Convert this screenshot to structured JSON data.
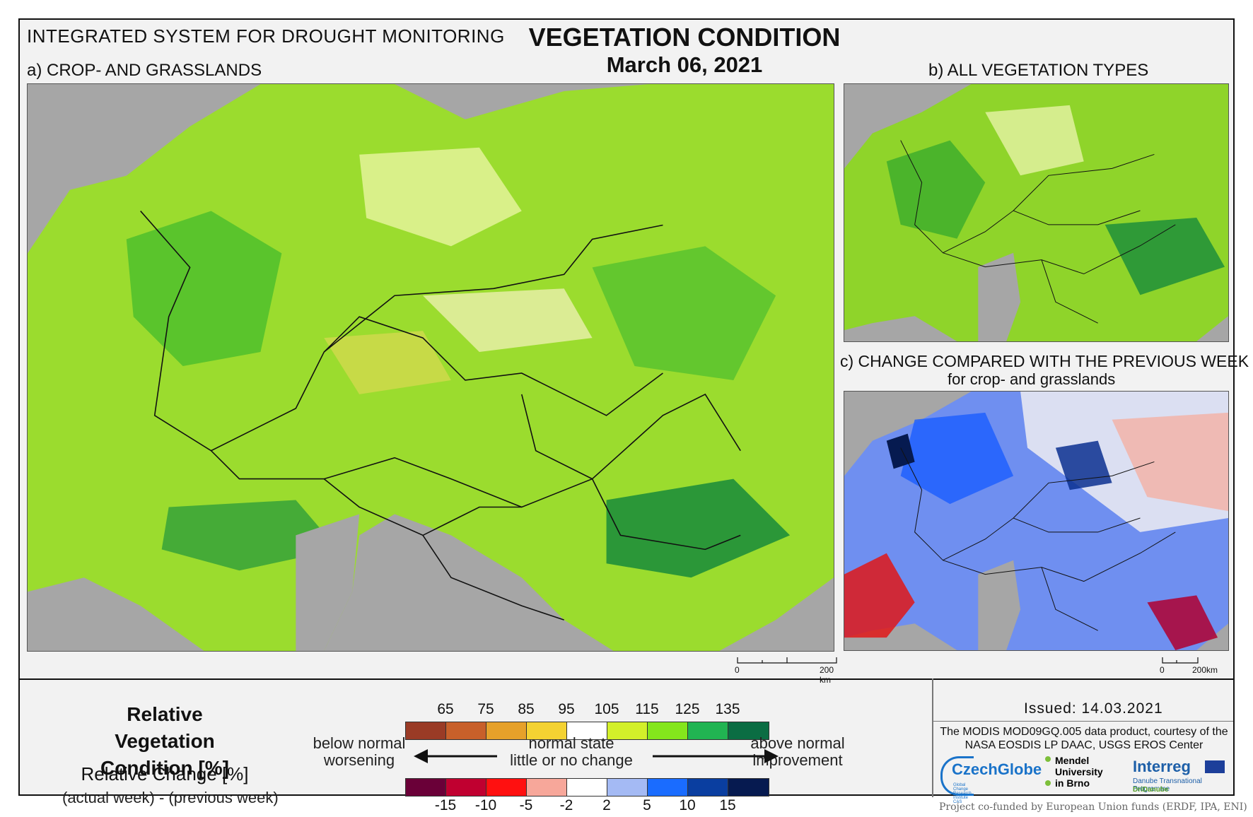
{
  "header": {
    "system": "INTEGRATED SYSTEM FOR DROUGHT MONITORING",
    "title": "VEGETATION CONDITION",
    "date": "March 06, 2021"
  },
  "panels": {
    "a": "a) CROP- AND GRASSLANDS",
    "b": "b) ALL VEGETATION TYPES",
    "c": "c) CHANGE COMPARED WITH THE PREVIOUS WEEK",
    "c_sub": "for crop- and grasslands"
  },
  "scale": {
    "a_zero": "0",
    "a_km": "200 km",
    "c_zero": "0",
    "c_km": "200km"
  },
  "legend": {
    "rvc_title": "Relative Vegetation Condition [%]",
    "rc_title": "Relative Change [%]",
    "rc_sub": "(actual week) - (previous week)",
    "top_ticks": [
      "65",
      "75",
      "85",
      "95",
      "105",
      "115",
      "125",
      "135"
    ],
    "bottom_ticks": [
      "-15",
      "-10",
      "-5",
      "-2",
      "2",
      "5",
      "10",
      "15"
    ],
    "top_colors": [
      "#9a3b26",
      "#c8602a",
      "#e6a12a",
      "#f4d232",
      "#ffffff",
      "#d3f02a",
      "#84e61c",
      "#21b452",
      "#0b6d43"
    ],
    "bottom_colors": [
      "#6a0038",
      "#c00030",
      "#ff1010",
      "#f7a79a",
      "#ffffff",
      "#a4baf4",
      "#1a6cff",
      "#0a3ea0",
      "#061a50"
    ],
    "below_normal": "below normal",
    "worsening": "worsening",
    "normal_state": "normal state",
    "little_change": "little or no change",
    "above_normal": "above normal",
    "improvement": "improvement"
  },
  "footer": {
    "issued": "Issued: 14.03.2021",
    "courtesy": "The MODIS MOD09GQ.005 data product, courtesy of the NASA EOSDIS LP DAAC, USGS EROS Center",
    "logo_czechglobe": "CzechGlobe",
    "logo_czechglobe_sub": "Global Change Research Institute CAS",
    "logo_mendel": "Mendel University in Brno",
    "logo_interreg": "Interreg",
    "logo_interreg_sub": "Danube Transnational Programme",
    "logo_dridanube": "DriDanube",
    "funded": "Project co-funded by European Union funds (ERDF, IPA, ENI)"
  },
  "colors": {
    "sea": "#a6a6a6",
    "border": "#111111"
  }
}
